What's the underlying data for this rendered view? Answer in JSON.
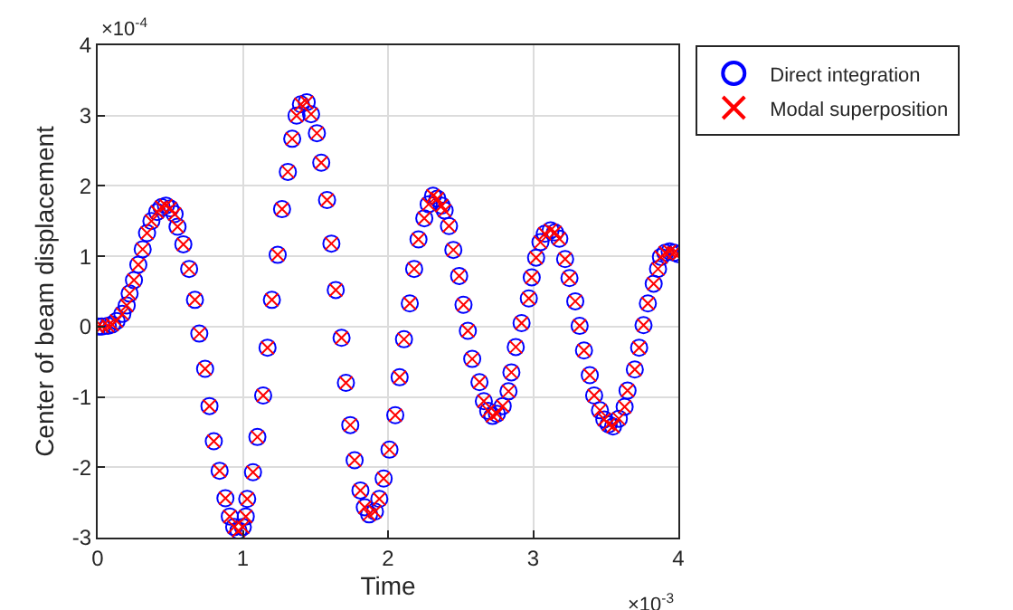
{
  "chart_data": {
    "type": "scatter",
    "xlabel": "Time",
    "ylabel": "Center of beam displacement",
    "x": [
      0,
      0.03,
      0.07,
      0.1,
      0.13,
      0.17,
      0.2,
      0.22,
      0.25,
      0.28,
      0.31,
      0.34,
      0.37,
      0.41,
      0.44,
      0.47,
      0.5,
      0.53,
      0.55,
      0.59,
      0.63,
      0.67,
      0.7,
      0.74,
      0.77,
      0.8,
      0.84,
      0.88,
      0.91,
      0.94,
      0.97,
      1.0,
      1.02,
      1.03,
      1.07,
      1.1,
      1.14,
      1.17,
      1.2,
      1.24,
      1.27,
      1.31,
      1.34,
      1.37,
      1.4,
      1.44,
      1.47,
      1.51,
      1.54,
      1.58,
      1.61,
      1.64,
      1.68,
      1.71,
      1.74,
      1.77,
      1.81,
      1.84,
      1.87,
      1.91,
      1.94,
      1.97,
      2.01,
      2.05,
      2.08,
      2.11,
      2.15,
      2.18,
      2.21,
      2.25,
      2.28,
      2.31,
      2.34,
      2.37,
      2.39,
      2.42,
      2.45,
      2.49,
      2.52,
      2.55,
      2.58,
      2.63,
      2.66,
      2.69,
      2.72,
      2.75,
      2.79,
      2.83,
      2.85,
      2.88,
      2.92,
      2.97,
      2.99,
      3.02,
      3.05,
      3.08,
      3.12,
      3.15,
      3.18,
      3.22,
      3.25,
      3.29,
      3.32,
      3.35,
      3.39,
      3.42,
      3.46,
      3.49,
      3.52,
      3.55,
      3.59,
      3.63,
      3.65,
      3.7,
      3.73,
      3.76,
      3.79,
      3.83,
      3.86,
      3.88,
      3.91,
      3.94,
      3.97,
      4.0
    ],
    "series": [
      {
        "name": "Direct integration",
        "color": "#0000ff",
        "marker": "circle",
        "values": [
          0,
          0,
          0.01,
          0.03,
          0.08,
          0.18,
          0.3,
          0.47,
          0.66,
          0.88,
          1.1,
          1.33,
          1.5,
          1.63,
          1.7,
          1.72,
          1.68,
          1.6,
          1.42,
          1.17,
          0.82,
          0.38,
          -0.1,
          -0.6,
          -1.13,
          -1.63,
          -2.05,
          -2.44,
          -2.7,
          -2.85,
          -2.9,
          -2.85,
          -2.7,
          -2.45,
          -2.07,
          -1.57,
          -0.98,
          -0.3,
          0.38,
          1.02,
          1.67,
          2.2,
          2.67,
          3.0,
          3.16,
          3.19,
          3.02,
          2.75,
          2.33,
          1.8,
          1.18,
          0.52,
          -0.16,
          -0.8,
          -1.4,
          -1.9,
          -2.33,
          -2.57,
          -2.67,
          -2.63,
          -2.45,
          -2.16,
          -1.75,
          -1.26,
          -0.72,
          -0.18,
          0.33,
          0.82,
          1.24,
          1.54,
          1.74,
          1.86,
          1.82,
          1.72,
          1.65,
          1.43,
          1.09,
          0.72,
          0.31,
          -0.06,
          -0.46,
          -0.79,
          -1.06,
          -1.2,
          -1.27,
          -1.24,
          -1.13,
          -0.92,
          -0.65,
          -0.29,
          0.05,
          0.4,
          0.7,
          0.98,
          1.2,
          1.32,
          1.37,
          1.34,
          1.25,
          0.96,
          0.69,
          0.36,
          0.01,
          -0.34,
          -0.69,
          -0.98,
          -1.19,
          -1.32,
          -1.39,
          -1.42,
          -1.31,
          -1.14,
          -0.91,
          -0.61,
          -0.3,
          0.02,
          0.33,
          0.61,
          0.82,
          0.99,
          1.05,
          1.07,
          1.05,
          1.03
        ]
      },
      {
        "name": "Modal superposition",
        "color": "#ff0000",
        "marker": "cross",
        "values": [
          0,
          0,
          0.01,
          0.03,
          0.08,
          0.18,
          0.3,
          0.47,
          0.66,
          0.88,
          1.1,
          1.33,
          1.5,
          1.63,
          1.7,
          1.72,
          1.68,
          1.6,
          1.42,
          1.17,
          0.82,
          0.38,
          -0.1,
          -0.6,
          -1.13,
          -1.63,
          -2.05,
          -2.44,
          -2.7,
          -2.85,
          -2.9,
          -2.85,
          -2.7,
          -2.45,
          -2.07,
          -1.57,
          -0.98,
          -0.3,
          0.38,
          1.02,
          1.67,
          2.2,
          2.67,
          3.0,
          3.16,
          3.19,
          3.02,
          2.75,
          2.33,
          1.8,
          1.18,
          0.52,
          -0.16,
          -0.8,
          -1.4,
          -1.9,
          -2.33,
          -2.57,
          -2.67,
          -2.63,
          -2.45,
          -2.16,
          -1.75,
          -1.26,
          -0.72,
          -0.18,
          0.33,
          0.82,
          1.24,
          1.54,
          1.74,
          1.86,
          1.82,
          1.72,
          1.65,
          1.43,
          1.09,
          0.72,
          0.31,
          -0.06,
          -0.46,
          -0.79,
          -1.06,
          -1.2,
          -1.27,
          -1.24,
          -1.13,
          -0.92,
          -0.65,
          -0.29,
          0.05,
          0.4,
          0.7,
          0.98,
          1.2,
          1.32,
          1.37,
          1.34,
          1.25,
          0.96,
          0.69,
          0.36,
          0.01,
          -0.34,
          -0.69,
          -0.98,
          -1.19,
          -1.32,
          -1.39,
          -1.42,
          -1.31,
          -1.14,
          -0.91,
          -0.61,
          -0.3,
          0.02,
          0.33,
          0.61,
          0.82,
          0.99,
          1.05,
          1.07,
          1.05,
          1.03
        ]
      }
    ],
    "xlim": [
      0,
      4
    ],
    "xticks": [
      0,
      1,
      2,
      3,
      4
    ],
    "ylim": [
      -3,
      4
    ],
    "yticks": [
      -3,
      -2,
      -1,
      0,
      1,
      2,
      3,
      4
    ],
    "annotations": [
      "×10$^{-4}$",
      "×10$^{-3}$"
    ],
    "grid": true,
    "legend": "top right"
  }
}
